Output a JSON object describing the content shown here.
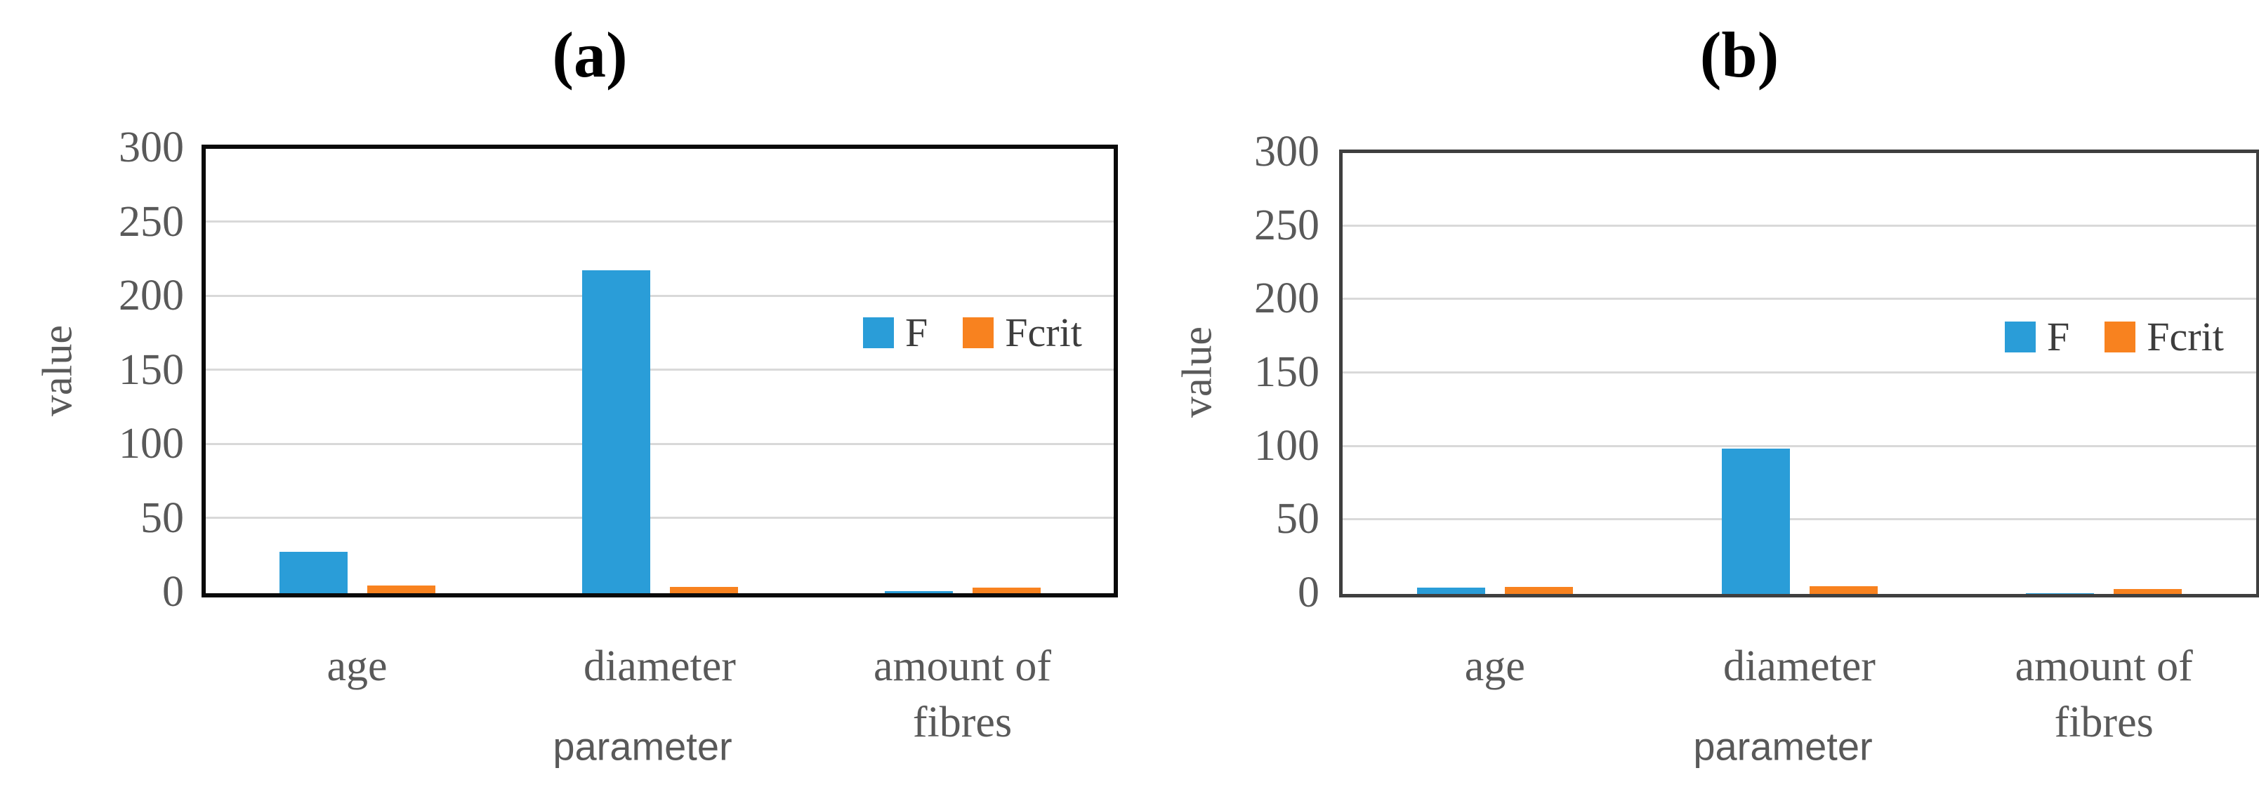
{
  "chart_data": [
    {
      "type": "bar",
      "panel": "(a)",
      "categories": [
        "age",
        "diameter",
        "amount of fibres"
      ],
      "series": [
        {
          "name": "F",
          "color": "#2A9DD8",
          "values": [
            28,
            218,
            1.5
          ]
        },
        {
          "name": "Fcrit",
          "color": "#F8821F",
          "values": [
            5.1,
            4.3,
            3.9
          ]
        }
      ],
      "xlabel": "parameter",
      "ylabel": "value",
      "ylim": [
        0,
        300
      ],
      "yticks": [
        0,
        50,
        100,
        150,
        200,
        250,
        300
      ],
      "grid": true,
      "legend_position": "top-right inside plot"
    },
    {
      "type": "bar",
      "panel": "(b)",
      "categories": [
        "age",
        "diameter",
        "amount of fibres"
      ],
      "series": [
        {
          "name": "F",
          "color": "#2A9DD8",
          "values": [
            4.5,
            99,
            0.3
          ]
        },
        {
          "name": "Fcrit",
          "color": "#F8821F",
          "values": [
            5.0,
            5.3,
            3.2
          ]
        }
      ],
      "xlabel": "parameter",
      "ylabel": "value",
      "ylim": [
        0,
        300
      ],
      "yticks": [
        0,
        50,
        100,
        150,
        200,
        250,
        300
      ],
      "grid": true,
      "legend_position": "top-right inside plot"
    }
  ],
  "colors": {
    "f_series": "#2A9DD8",
    "fcrit_series": "#F8821F",
    "gridline": "#D9D9D9",
    "axis_text": "#595959",
    "legend_text": "#3D3D3D",
    "panel_a_border": "#0A0A0A",
    "panel_b_border": "#3F3F3F"
  }
}
